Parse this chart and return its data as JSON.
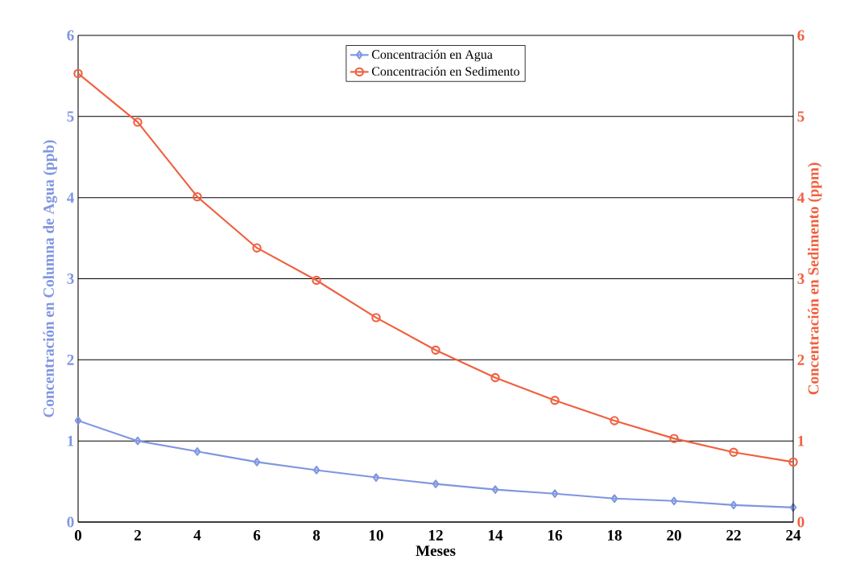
{
  "chart_data": {
    "type": "line",
    "xlabel": "Meses",
    "ylabel": "Concentración en Columna de Agua (ppb)",
    "y2label": "Concentración en Sedimento (ppm)",
    "x": [
      0,
      2,
      4,
      6,
      8,
      10,
      12,
      14,
      16,
      18,
      20,
      22,
      24
    ],
    "series": [
      {
        "name": "Concentración en Agua",
        "color": "#7f96e0",
        "marker": "diamond",
        "values": [
          1.25,
          1.0,
          0.87,
          0.74,
          0.64,
          0.55,
          0.47,
          0.4,
          0.35,
          0.29,
          0.26,
          0.21,
          0.18
        ]
      },
      {
        "name": "Concentración en Sedimento",
        "color": "#f0603f",
        "marker": "circle",
        "axis": "y2",
        "values": [
          5.53,
          4.93,
          4.01,
          3.38,
          2.98,
          2.52,
          2.12,
          1.78,
          1.5,
          1.25,
          1.03,
          0.86,
          0.74
        ]
      }
    ],
    "xlim": [
      0,
      24
    ],
    "xticks": [
      0,
      2,
      4,
      6,
      8,
      10,
      12,
      14,
      16,
      18,
      20,
      22,
      24
    ],
    "ylim": [
      0,
      6
    ],
    "yticks": [
      0,
      1,
      2,
      3,
      4,
      5,
      6
    ],
    "y2lim": [
      0,
      6
    ],
    "y2ticks": [
      0,
      1,
      2,
      3,
      4,
      5,
      6
    ],
    "grid": "y",
    "legend": "top",
    "line_style": "solid"
  }
}
